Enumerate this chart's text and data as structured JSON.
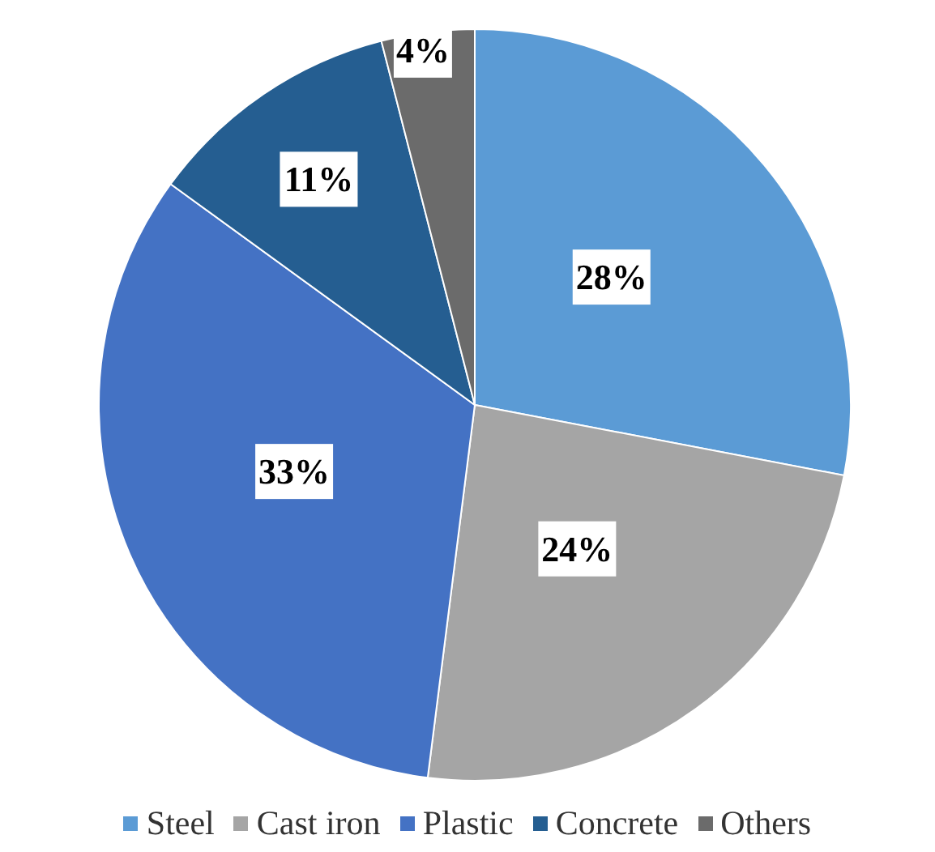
{
  "chart_data": {
    "type": "pie",
    "categories": [
      "Steel",
      "Cast iron",
      "Plastic",
      "Concrete",
      "Others"
    ],
    "values": [
      28,
      24,
      33,
      11,
      4
    ],
    "colors": [
      "#5b9bd5",
      "#a5a5a5",
      "#4472c4",
      "#255e91",
      "#6b6b6b"
    ],
    "value_labels": [
      "28%",
      "24%",
      "33%",
      "11%",
      "4%"
    ],
    "legend": "bottom"
  }
}
